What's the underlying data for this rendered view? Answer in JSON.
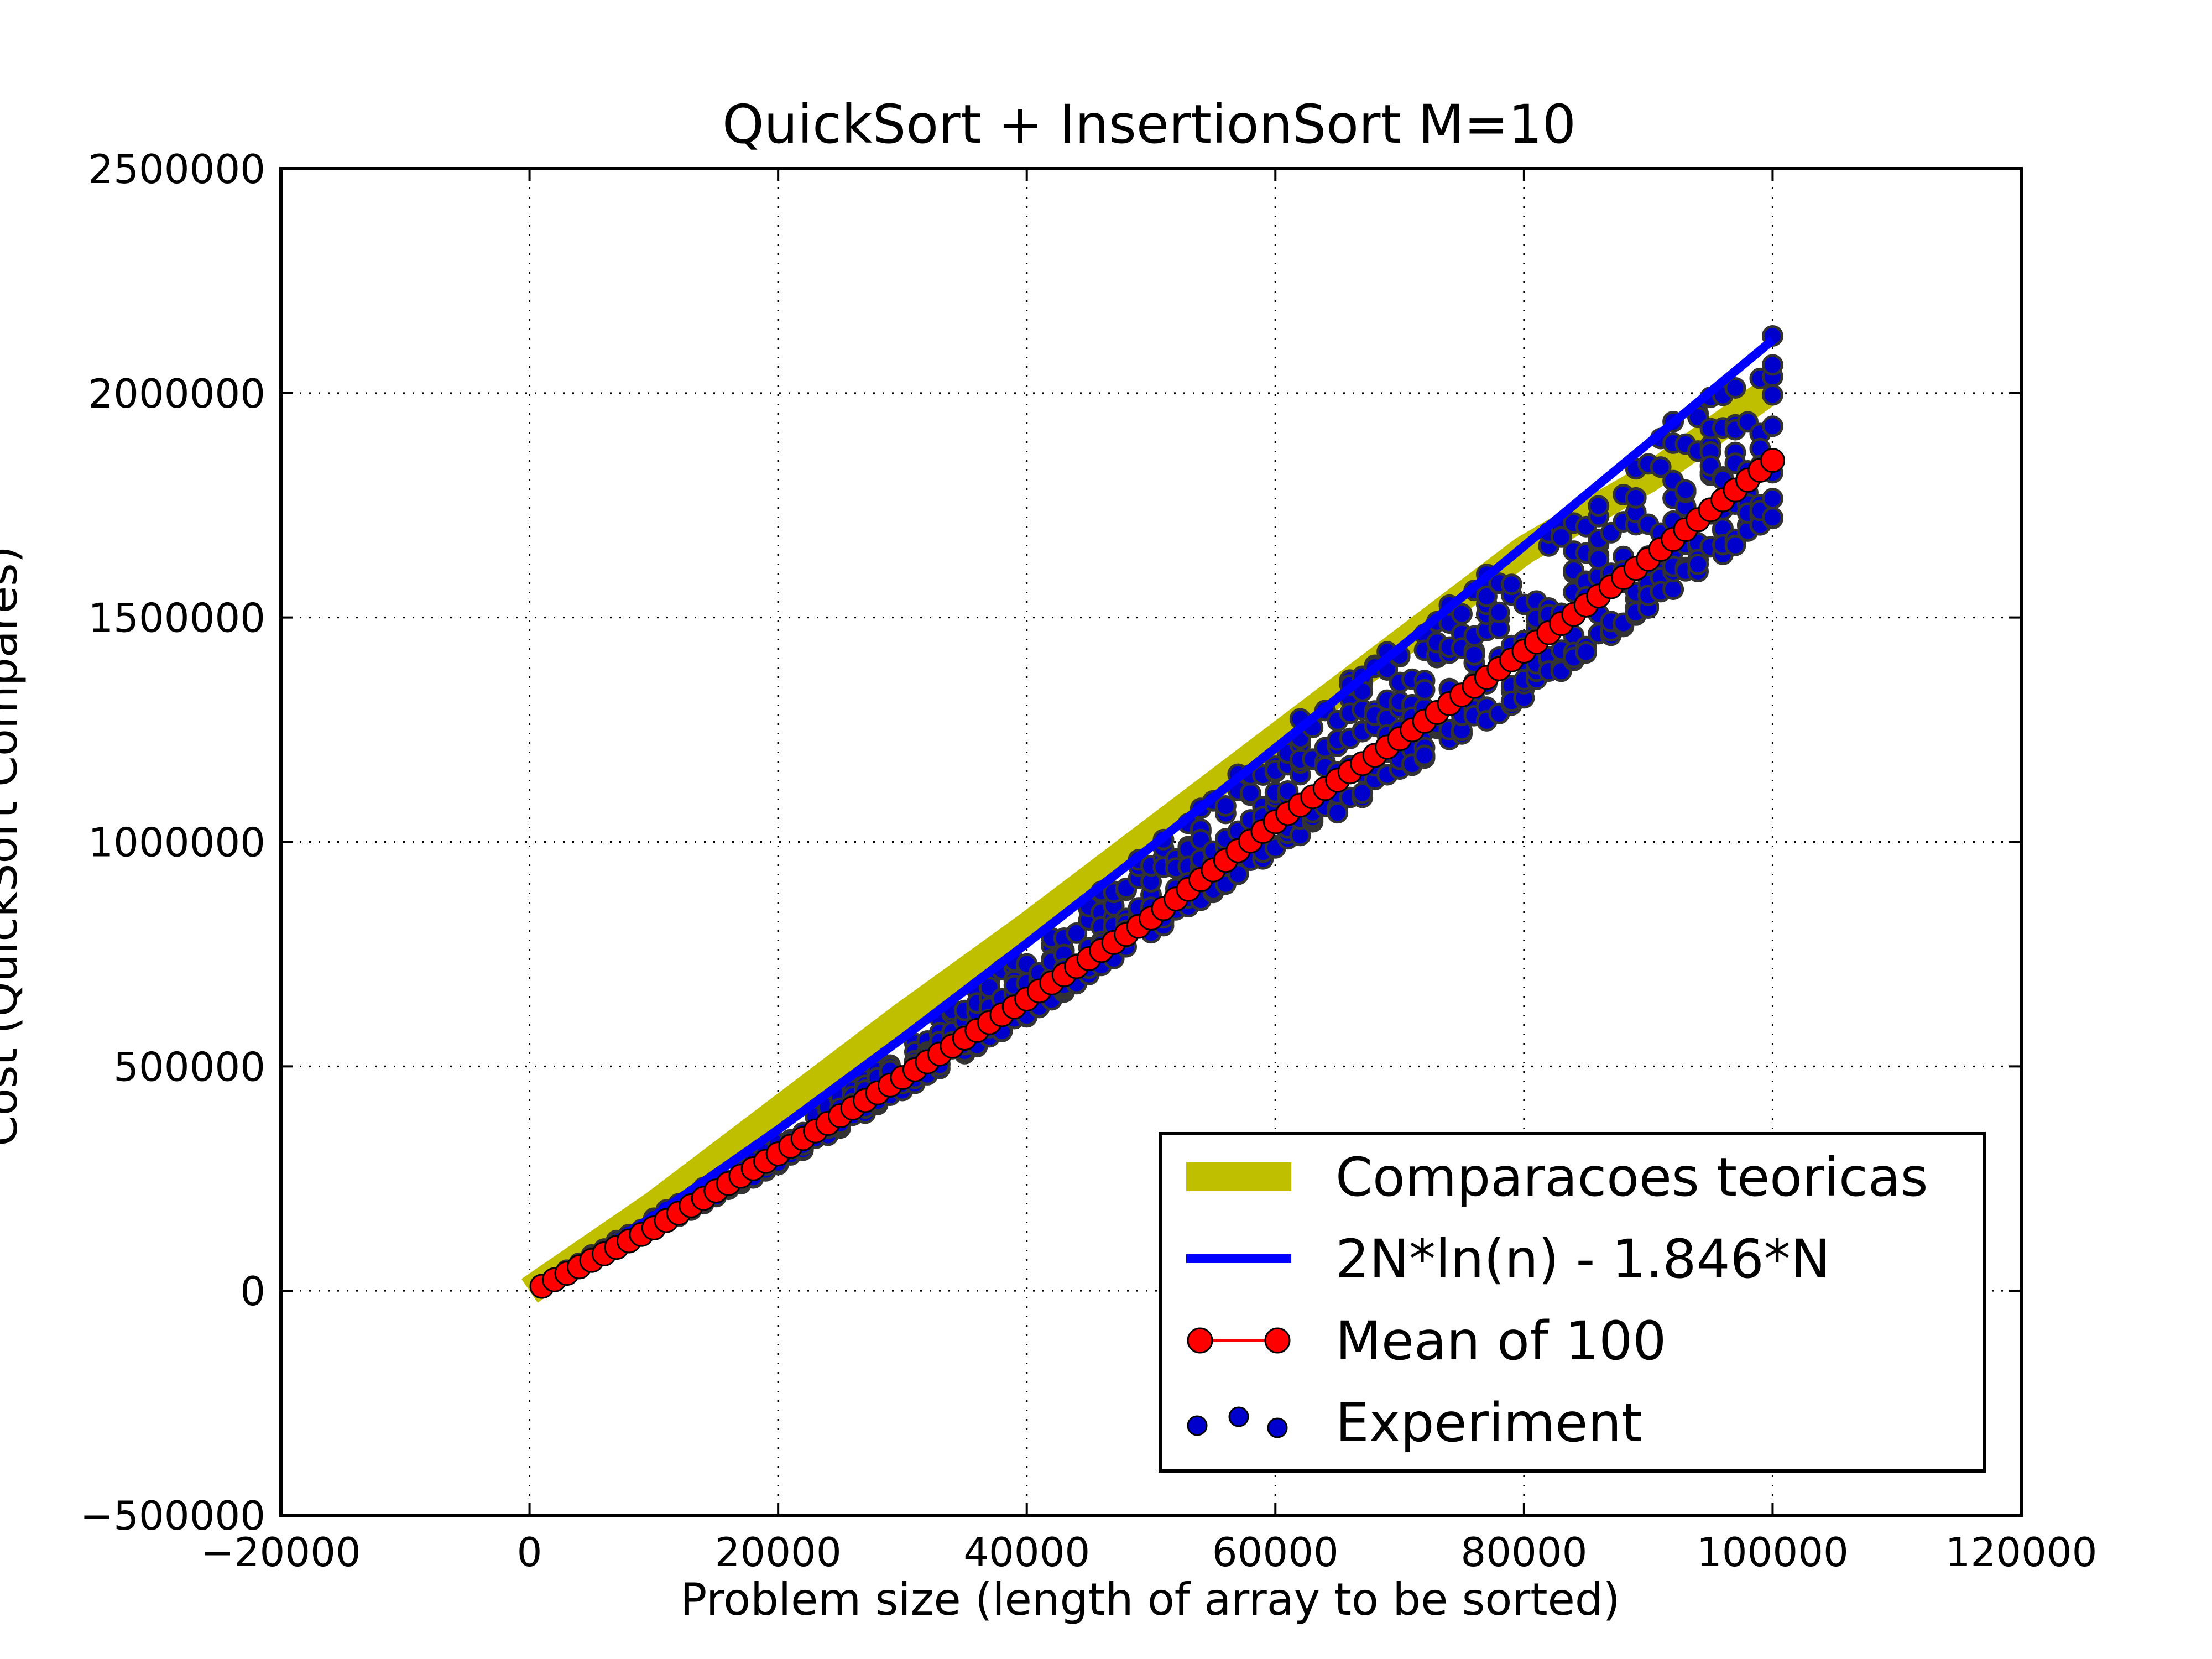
{
  "chart_data": {
    "type": "scatter",
    "title": "QuickSort + InsertionSort M=10",
    "xlabel": "Problem size (length of array to be sorted)",
    "ylabel": "Cost (QuickSort Compares)",
    "xlim": [
      -20000,
      120000
    ],
    "ylim": [
      -500000,
      2500000
    ],
    "xticks": [
      -20000,
      0,
      20000,
      40000,
      60000,
      80000,
      100000,
      120000
    ],
    "yticks": [
      -500000,
      0,
      500000,
      1000000,
      1500000,
      2000000,
      2500000
    ],
    "grid": true,
    "legend_position": "lower-right",
    "colors": {
      "theoretical": "#bfbf00",
      "formula": "#0000ff",
      "mean": "#ff0000",
      "experiment": "#0000cc",
      "experiment_edge": "#333333"
    },
    "series": [
      {
        "name": "Comparacoes teoricas",
        "kind": "line",
        "x": [
          0,
          10000,
          20000,
          30000,
          40000,
          50000,
          60000,
          70000,
          80000,
          90000,
          100000
        ],
        "y": [
          0,
          190000,
          400000,
          610000,
          810000,
          1020000,
          1230000,
          1440000,
          1650000,
          1810000,
          2010000
        ]
      },
      {
        "name": "2N*ln(n) - 1.846*N",
        "kind": "line",
        "x": [
          1000,
          10000,
          20000,
          30000,
          40000,
          50000,
          60000,
          70000,
          80000,
          90000,
          100000
        ],
        "y": [
          12000,
          166000,
          359000,
          563000,
          774000,
          989000,
          1209000,
          1432000,
          1659000,
          1888000,
          2118000
        ]
      },
      {
        "name": "Mean of 100",
        "kind": "line-marker",
        "x_start": 1000,
        "x_step": 1000,
        "count": 100,
        "anchors_x": [
          1000,
          10000,
          20000,
          30000,
          40000,
          50000,
          60000,
          70000,
          80000,
          90000,
          100000
        ],
        "anchors_y": [
          10000,
          140000,
          305000,
          475000,
          650000,
          830000,
          1045000,
          1230000,
          1425000,
          1630000,
          1850000
        ]
      },
      {
        "name": "Experiment",
        "kind": "scatter",
        "description_anchors_x": [
          1000,
          20000,
          40000,
          60000,
          80000,
          100000
        ],
        "description_anchors_y_low": [
          8000,
          280000,
          610000,
          980000,
          1320000,
          1720000
        ],
        "description_anchors_y_high": [
          14000,
          330000,
          760000,
          1230000,
          1680000,
          2130000
        ]
      }
    ]
  }
}
